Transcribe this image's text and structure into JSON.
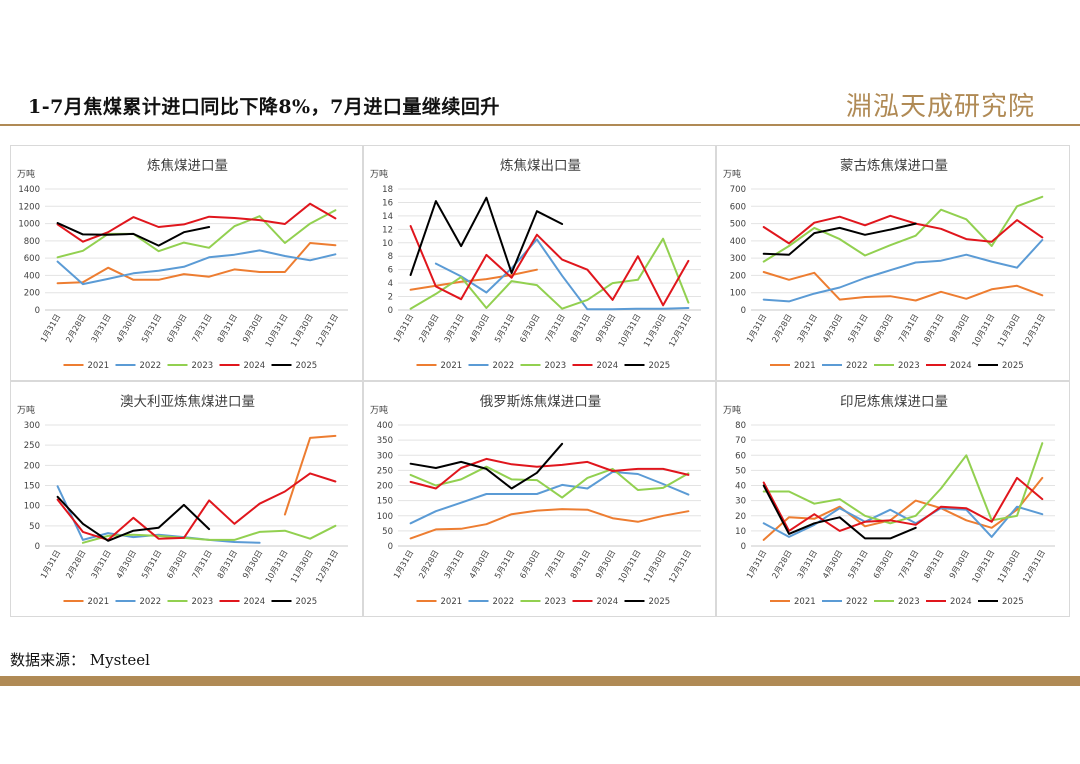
{
  "header": {
    "title": "1-7月焦煤累计进口同比下降8%，7月进口量继续回升",
    "logo_text": "淵泓天成研究院"
  },
  "footer": {
    "source": "数据来源：  Mysteel"
  },
  "colors": {
    "2021": "#ed7d31",
    "2022": "#5b9bd5",
    "2023": "#92d050",
    "2024": "#e0161d",
    "2025": "#000000",
    "accent": "#b08a55"
  },
  "chart_data": [
    {
      "type": "line",
      "title": "炼焦煤进口量",
      "unit": "万吨",
      "categories": [
        "1月31日",
        "2月28日",
        "3月31日",
        "4月30日",
        "5月31日",
        "6月30日",
        "7月31日",
        "8月31日",
        "9月30日",
        "10月31日",
        "11月30日",
        "12月31日"
      ],
      "ylim": [
        0,
        1400
      ],
      "yticks": [
        0,
        200,
        400,
        600,
        800,
        1000,
        1200,
        1400
      ],
      "legend": "bottom",
      "series": [
        {
          "name": "2021",
          "values": [
            310,
            320,
            490,
            350,
            350,
            415,
            385,
            470,
            440,
            440,
            775,
            750
          ]
        },
        {
          "name": "2022",
          "values": [
            560,
            300,
            360,
            425,
            455,
            500,
            610,
            640,
            690,
            625,
            575,
            645
          ]
        },
        {
          "name": "2023",
          "values": [
            610,
            685,
            880,
            880,
            680,
            780,
            720,
            970,
            1085,
            775,
            1000,
            1155
          ]
        },
        {
          "name": "2024",
          "values": [
            990,
            790,
            900,
            1075,
            960,
            990,
            1080,
            1065,
            1040,
            995,
            1230,
            1060
          ]
        },
        {
          "name": "2025",
          "values": [
            1005,
            875,
            870,
            880,
            745,
            900,
            960,
            null,
            null,
            null,
            null,
            null
          ]
        }
      ]
    },
    {
      "type": "line",
      "title": "炼焦煤出口量",
      "unit": "万吨",
      "categories": [
        "1月31日",
        "2月28日",
        "3月31日",
        "4月30日",
        "5月31日",
        "6月30日",
        "7月31日",
        "8月31日",
        "9月30日",
        "10月31日",
        "11月30日",
        "12月31日"
      ],
      "ylim": [
        0,
        18
      ],
      "yticks": [
        0,
        2,
        4,
        6,
        8,
        10,
        12,
        14,
        16,
        18
      ],
      "legend": "bottom",
      "series": [
        {
          "name": "2021",
          "values": [
            3.0,
            3.6,
            4.2,
            4.6,
            5.2,
            6.0,
            null,
            null,
            null,
            null,
            null,
            null
          ]
        },
        {
          "name": "2022",
          "values": [
            null,
            6.9,
            5.0,
            2.6,
            6.2,
            10.5,
            5.1,
            0.1,
            0.1,
            0.2,
            0.2,
            0.3
          ]
        },
        {
          "name": "2023",
          "values": [
            0.2,
            2.4,
            4.9,
            0.3,
            4.3,
            3.7,
            0.2,
            1.5,
            4.0,
            4.5,
            10.6,
            1.1
          ]
        },
        {
          "name": "2024",
          "values": [
            12.5,
            3.5,
            1.6,
            8.2,
            4.8,
            11.2,
            7.5,
            6.0,
            1.5,
            8.0,
            0.7,
            7.3
          ]
        },
        {
          "name": "2025",
          "values": [
            5.2,
            16.2,
            9.5,
            16.7,
            5.5,
            14.7,
            12.8,
            null,
            null,
            null,
            null,
            null
          ]
        }
      ]
    },
    {
      "type": "line",
      "title": "蒙古炼焦煤进口量",
      "unit": "万吨",
      "categories": [
        "1月31日",
        "2月28日",
        "3月31日",
        "4月30日",
        "5月31日",
        "6月30日",
        "7月31日",
        "8月31日",
        "9月30日",
        "10月31日",
        "11月30日",
        "12月31日"
      ],
      "ylim": [
        0,
        700
      ],
      "yticks": [
        0,
        100,
        200,
        300,
        400,
        500,
        600,
        700
      ],
      "legend": "bottom",
      "series": [
        {
          "name": "2021",
          "values": [
            220,
            175,
            215,
            60,
            75,
            80,
            55,
            105,
            65,
            120,
            140,
            85
          ]
        },
        {
          "name": "2022",
          "values": [
            60,
            50,
            95,
            130,
            185,
            230,
            275,
            285,
            320,
            280,
            245,
            405
          ]
        },
        {
          "name": "2023",
          "values": [
            280,
            370,
            475,
            410,
            315,
            375,
            430,
            580,
            525,
            370,
            600,
            655
          ]
        },
        {
          "name": "2024",
          "values": [
            480,
            385,
            505,
            540,
            490,
            545,
            500,
            470,
            410,
            395,
            520,
            420
          ]
        },
        {
          "name": "2025",
          "values": [
            325,
            320,
            445,
            475,
            435,
            465,
            500,
            null,
            null,
            null,
            null,
            null
          ]
        }
      ]
    },
    {
      "type": "line",
      "title": "澳大利亚炼焦煤进口量",
      "unit": "万吨",
      "categories": [
        "1月31日",
        "2月28日",
        "3月31日",
        "4月30日",
        "5月31日",
        "6月30日",
        "7月31日",
        "8月31日",
        "9月30日",
        "10月31日",
        "11月30日",
        "12月31日"
      ],
      "ylim": [
        0,
        300
      ],
      "yticks": [
        0,
        50,
        100,
        150,
        200,
        250,
        300
      ],
      "legend": "bottom",
      "series": [
        {
          "name": "2021",
          "values": [
            null,
            null,
            null,
            null,
            null,
            null,
            null,
            null,
            null,
            78,
            268,
            273
          ]
        },
        {
          "name": "2022",
          "values": [
            148,
            15,
            32,
            22,
            28,
            22,
            15,
            10,
            8,
            null,
            null,
            null
          ]
        },
        {
          "name": "2023",
          "values": [
            null,
            8,
            25,
            28,
            25,
            20,
            15,
            15,
            35,
            38,
            18,
            50
          ]
        },
        {
          "name": "2024",
          "values": [
            115,
            35,
            15,
            70,
            18,
            20,
            113,
            55,
            105,
            135,
            180,
            160
          ]
        },
        {
          "name": "2025",
          "values": [
            122,
            55,
            13,
            38,
            45,
            102,
            42,
            null,
            null,
            null,
            null,
            null
          ]
        }
      ]
    },
    {
      "type": "line",
      "title": "俄罗斯炼焦煤进口量",
      "unit": "万吨",
      "categories": [
        "1月31日",
        "2月28日",
        "3月31日",
        "4月30日",
        "5月31日",
        "6月30日",
        "7月31日",
        "8月31日",
        "9月30日",
        "10月31日",
        "11月30日",
        "12月31日"
      ],
      "ylim": [
        0,
        400
      ],
      "yticks": [
        0,
        50,
        100,
        150,
        200,
        250,
        300,
        350,
        400
      ],
      "legend": "bottom",
      "series": [
        {
          "name": "2021",
          "values": [
            25,
            55,
            57,
            72,
            105,
            117,
            122,
            120,
            92,
            80,
            100,
            115
          ]
        },
        {
          "name": "2022",
          "values": [
            75,
            115,
            143,
            172,
            172,
            172,
            202,
            190,
            245,
            238,
            205,
            170
          ]
        },
        {
          "name": "2023",
          "values": [
            235,
            200,
            220,
            262,
            220,
            218,
            160,
            225,
            255,
            185,
            192,
            240
          ]
        },
        {
          "name": "2024",
          "values": [
            212,
            190,
            258,
            288,
            270,
            262,
            268,
            278,
            248,
            255,
            255,
            235
          ]
        },
        {
          "name": "2025",
          "values": [
            272,
            258,
            278,
            255,
            190,
            242,
            338,
            null,
            null,
            null,
            null,
            null
          ]
        }
      ]
    },
    {
      "type": "line",
      "title": "印尼炼焦煤进口量",
      "unit": "万吨",
      "categories": [
        "1月31日",
        "2月28日",
        "3月31日",
        "4月30日",
        "5月31日",
        "6月30日",
        "7月31日",
        "8月31日",
        "9月30日",
        "10月31日",
        "11月30日",
        "12月31日"
      ],
      "ylim": [
        0,
        80
      ],
      "yticks": [
        0,
        10,
        20,
        30,
        40,
        50,
        60,
        70,
        80
      ],
      "legend": "bottom",
      "series": [
        {
          "name": "2021",
          "values": [
            4,
            19,
            18,
            26,
            13,
            17,
            30,
            25,
            17,
            12,
            24,
            45
          ]
        },
        {
          "name": "2022",
          "values": [
            15,
            6,
            14,
            25,
            16,
            24,
            15,
            25,
            24,
            6,
            26,
            21
          ]
        },
        {
          "name": "2023",
          "values": [
            36,
            36,
            28,
            31,
            20,
            15,
            20,
            38,
            60,
            17,
            20,
            68
          ]
        },
        {
          "name": "2024",
          "values": [
            42,
            10,
            21,
            10,
            16,
            17,
            14,
            26,
            25,
            16,
            45,
            31
          ]
        },
        {
          "name": "2025",
          "values": [
            40,
            8,
            15,
            19,
            5,
            5,
            12,
            null,
            null,
            null,
            null,
            null
          ]
        }
      ]
    }
  ]
}
